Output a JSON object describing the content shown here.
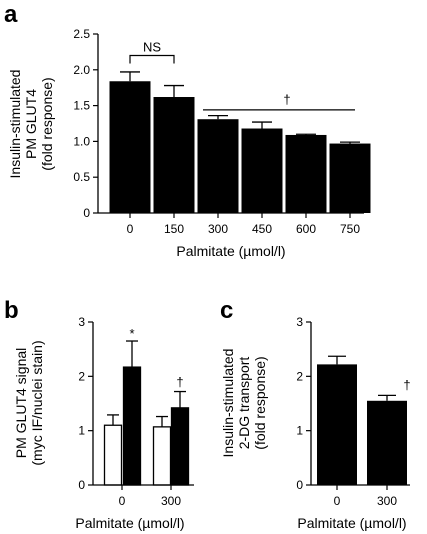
{
  "chart_data": [
    {
      "panel": "a",
      "type": "bar",
      "categories": [
        "0",
        "150",
        "300",
        "450",
        "600",
        "750"
      ],
      "values": [
        1.84,
        1.62,
        1.31,
        1.18,
        1.09,
        0.97
      ],
      "errors": [
        0.13,
        0.16,
        0.05,
        0.09,
        0.01,
        0.02
      ],
      "xlabel": "Palmitate (µmol/l)",
      "ylabel": [
        "Insulin-stimulated",
        "PM GLUT4",
        "(fold response)"
      ],
      "ylim": [
        0,
        2.5
      ],
      "yticks": [
        "0",
        "0.5",
        "1.0",
        "1.5",
        "2.0",
        "2.5"
      ],
      "annotations": {
        "ns": "NS",
        "dagger": "†"
      }
    },
    {
      "panel": "b",
      "type": "bar",
      "categories": [
        "0",
        "300"
      ],
      "series": [
        {
          "fill": "#ffffff",
          "values": [
            1.1,
            1.07
          ],
          "errors": [
            0.19,
            0.19
          ]
        },
        {
          "fill": "#000000",
          "values": [
            2.17,
            1.42
          ],
          "errors": [
            0.48,
            0.3
          ]
        }
      ],
      "xlabel": "Palmitate (µmol/l)",
      "ylabel": [
        "PM GLUT4 signal",
        "(myc IF/nuclei stain)"
      ],
      "ylim": [
        0,
        3
      ],
      "yticks": [
        "0",
        "1",
        "2",
        "3"
      ],
      "annotations": {
        "star": "*",
        "dagger": "†"
      }
    },
    {
      "panel": "c",
      "type": "bar",
      "categories": [
        "0",
        "300"
      ],
      "values": [
        2.22,
        1.55
      ],
      "errors": [
        0.15,
        0.1
      ],
      "xlabel": "Palmitate (µmol/l)",
      "ylabel": [
        "Insulin-stimulated",
        "2-DG transport",
        "(fold response)"
      ],
      "ylim": [
        0,
        3
      ],
      "yticks": [
        "0",
        "1",
        "2",
        "3"
      ],
      "annotations": {
        "dagger": "†"
      }
    }
  ]
}
